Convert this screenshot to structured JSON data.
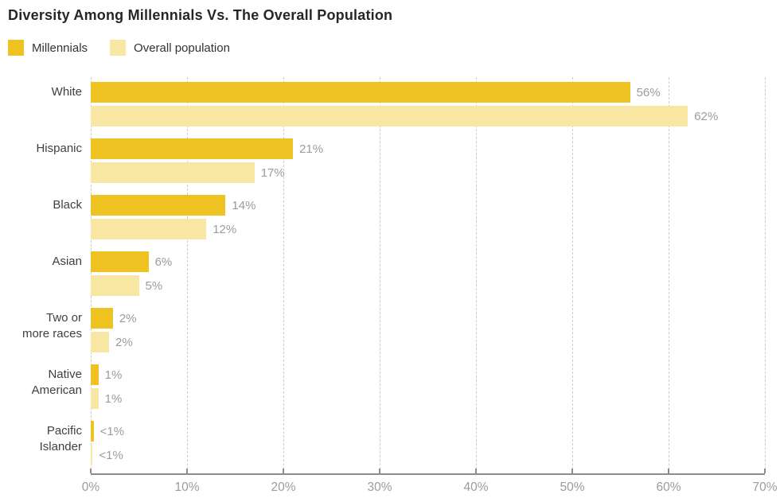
{
  "chart_data": {
    "type": "bar",
    "orientation": "horizontal",
    "title": "Diversity Among Millennials Vs. The Overall Population",
    "categories": [
      "White",
      "Hispanic",
      "Black",
      "Asian",
      "Two or more races",
      "Native American",
      "Pacific Islander"
    ],
    "category_label_lines": [
      [
        "White"
      ],
      [
        "Hispanic"
      ],
      [
        "Black"
      ],
      [
        "Asian"
      ],
      [
        "Two or",
        "more races"
      ],
      [
        "Native",
        "American"
      ],
      [
        "Pacific",
        "Islander"
      ]
    ],
    "series": [
      {
        "name": "Millennials",
        "color": "#edc221",
        "values": [
          56,
          21,
          14,
          6,
          2.3,
          0.8,
          0.3
        ],
        "value_labels": [
          "56%",
          "21%",
          "14%",
          "6%",
          "2%",
          "1%",
          "<1%"
        ]
      },
      {
        "name": "Overall population",
        "color": "#f8e7a2",
        "values": [
          62,
          17,
          12,
          5,
          1.9,
          0.8,
          0.2
        ],
        "value_labels": [
          "62%",
          "17%",
          "12%",
          "5%",
          "2%",
          "1%",
          "<1%"
        ]
      }
    ],
    "xlim": [
      0,
      70
    ],
    "x_ticks": [
      "0%",
      "10%",
      "20%",
      "30%",
      "40%",
      "50%",
      "60%",
      "70%"
    ],
    "grid": "vertical-dashed",
    "legend_position": "top-left"
  },
  "colors": {
    "title": "#262626",
    "category_label": "#3f3f3f",
    "value_label": "#9b9b9b",
    "axis_line": "#8c8c8c",
    "axis_tick_label": "#9b9b9b",
    "gridline": "#cccccc",
    "background": "#ffffff"
  }
}
